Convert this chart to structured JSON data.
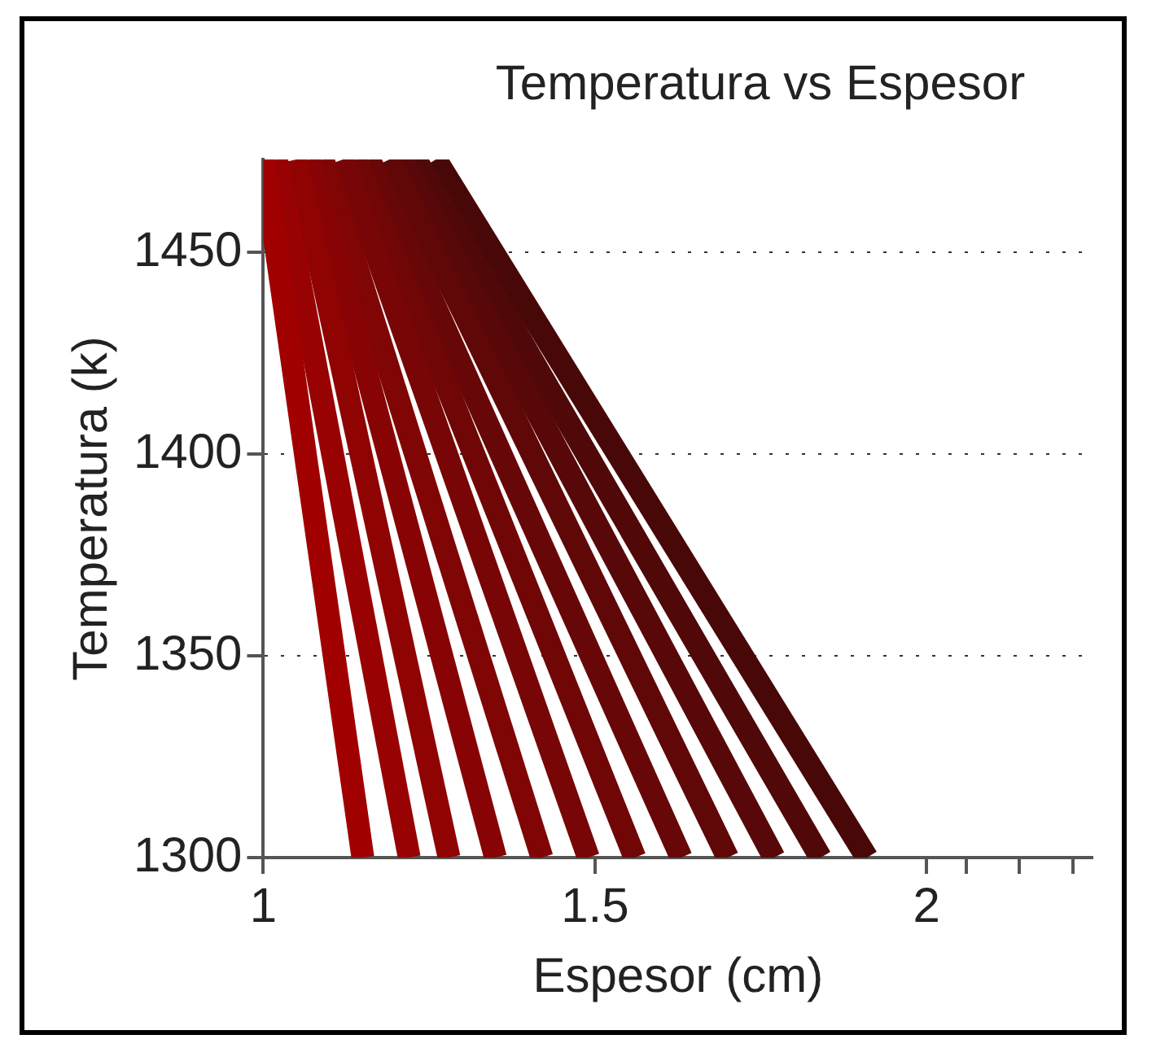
{
  "chart_data": {
    "type": "line",
    "title": "Temperatura vs Espesor",
    "xlabel": "Espesor (cm)",
    "ylabel": "Temperatura (k)",
    "xlim": [
      1,
      2.25
    ],
    "xticks": [
      1,
      1.5,
      2,
      {
        "value": 2.06,
        "label": null
      },
      {
        "value": 2.14,
        "label": null
      },
      {
        "value": 2.22,
        "label": null
      }
    ],
    "ylim": [
      1300,
      1473
    ],
    "yticks": [
      1300,
      1350,
      1400,
      1450
    ],
    "grid": "y",
    "legend": false,
    "marker": "none",
    "line_style": "solid",
    "series": [
      {
        "x": [
          1.0,
          1.15
        ],
        "values": [
          1473,
          1300
        ],
        "color": "#a00000"
      },
      {
        "x": [
          1.02,
          1.22
        ],
        "values": [
          1473,
          1300
        ],
        "color": "#980202"
      },
      {
        "x": [
          1.05,
          1.28
        ],
        "values": [
          1473,
          1300
        ],
        "color": "#900303"
      },
      {
        "x": [
          1.07,
          1.35
        ],
        "values": [
          1473,
          1300
        ],
        "color": "#880404"
      },
      {
        "x": [
          1.09,
          1.42
        ],
        "values": [
          1473,
          1300
        ],
        "color": "#800505"
      },
      {
        "x": [
          1.12,
          1.49
        ],
        "values": [
          1473,
          1300
        ],
        "color": "#780606"
      },
      {
        "x": [
          1.14,
          1.56
        ],
        "values": [
          1473,
          1300
        ],
        "color": "#700606"
      },
      {
        "x": [
          1.16,
          1.63
        ],
        "values": [
          1473,
          1300
        ],
        "color": "#680707"
      },
      {
        "x": [
          1.19,
          1.7
        ],
        "values": [
          1473,
          1300
        ],
        "color": "#600707"
      },
      {
        "x": [
          1.21,
          1.77
        ],
        "values": [
          1473,
          1300
        ],
        "color": "#580808"
      },
      {
        "x": [
          1.23,
          1.84
        ],
        "values": [
          1473,
          1300
        ],
        "color": "#500808"
      },
      {
        "x": [
          1.26,
          1.91
        ],
        "values": [
          1473,
          1300
        ],
        "color": "#480808"
      }
    ]
  }
}
